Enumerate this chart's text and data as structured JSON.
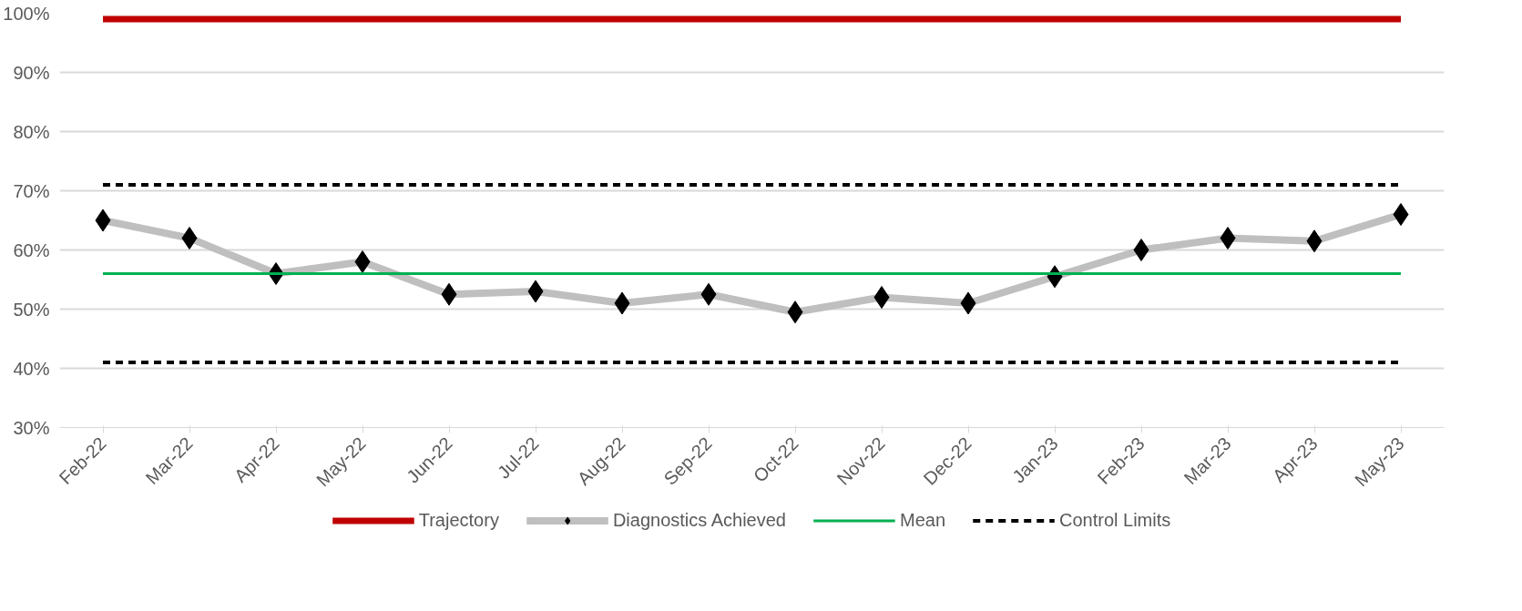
{
  "chart_data": {
    "type": "line",
    "categories": [
      "Feb-22",
      "Mar-22",
      "Apr-22",
      "May-22",
      "Jun-22",
      "Jul-22",
      "Aug-22",
      "Sep-22",
      "Oct-22",
      "Nov-22",
      "Dec-22",
      "Jan-23",
      "Feb-23",
      "Mar-23",
      "Apr-23",
      "May-23"
    ],
    "series": [
      {
        "name": "Trajectory",
        "color": "#c00000",
        "marker": "none",
        "values": [
          99,
          99,
          99,
          99,
          99,
          99,
          99,
          99,
          99,
          99,
          99,
          99,
          99,
          99,
          99,
          99
        ]
      },
      {
        "name": "Diagnostics Achieved",
        "color": "#bfbfbf",
        "marker": "diamond",
        "values": [
          65,
          62,
          56,
          58,
          52.5,
          53,
          51,
          52.5,
          49.5,
          52,
          51,
          55.5,
          60,
          62,
          61.5,
          66
        ]
      },
      {
        "name": "Mean",
        "color": "#00b050",
        "marker": "none",
        "values": [
          56,
          56,
          56,
          56,
          56,
          56,
          56,
          56,
          56,
          56,
          56,
          56,
          56,
          56,
          56,
          56
        ]
      },
      {
        "name": "Control Limits",
        "color": "#000000",
        "marker": "none",
        "line_style": "dashed",
        "values": [
          71,
          71,
          71,
          71,
          71,
          71,
          71,
          71,
          71,
          71,
          71,
          71,
          71,
          71,
          71,
          71
        ]
      },
      {
        "color": "#000000",
        "marker": "none",
        "line_style": "dashed",
        "values": [
          41,
          41,
          41,
          41,
          41,
          41,
          41,
          41,
          41,
          41,
          41,
          41,
          41,
          41,
          41,
          41
        ]
      }
    ],
    "ylim": [
      30,
      100
    ],
    "yticks": [
      {
        "value": 30,
        "label": "30%"
      },
      {
        "value": 40,
        "label": "40%"
      },
      {
        "value": 50,
        "label": "50%"
      },
      {
        "value": 60,
        "label": "60%"
      },
      {
        "value": 70,
        "label": "70%"
      },
      {
        "value": 80,
        "label": "80%"
      },
      {
        "value": 90,
        "label": "90%"
      },
      {
        "value": 100,
        "label": "100%"
      }
    ],
    "grid": "y",
    "legend": "bottom"
  }
}
